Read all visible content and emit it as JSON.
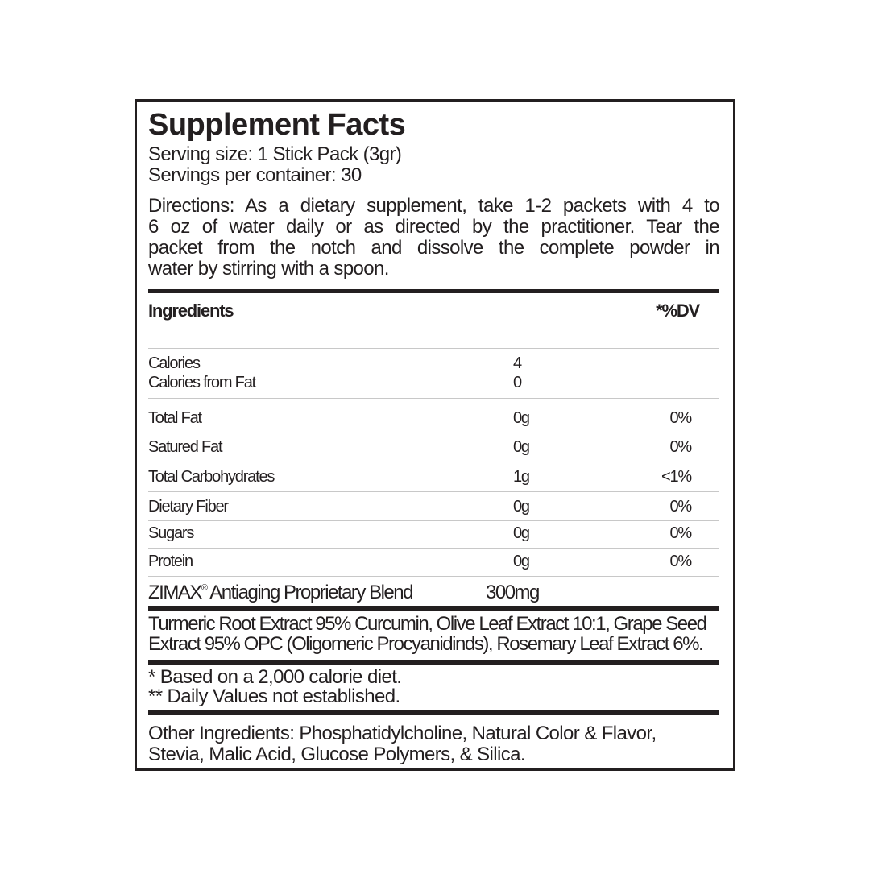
{
  "title": "Supplement Facts",
  "serving_size": "Serving size: 1 Stick Pack (3gr)",
  "servings_per_container": "Servings per container: 30",
  "directions": [
    "Directions: As a dietary supplement, take 1-2 packets with 4 to",
    "6 oz of water daily or as directed by the practitioner. Tear the",
    "packet from the notch and dissolve the complete powder in",
    "water by stirring with a spoon."
  ],
  "header": {
    "ingredients": "Ingredients",
    "dv": "*%DV"
  },
  "calories": {
    "label": "Calories",
    "value": "4"
  },
  "calories_from_fat": {
    "label": "Calories from Fat",
    "value": "0"
  },
  "rows": [
    {
      "label": "Total Fat",
      "amount": "0g",
      "dv": "0%"
    },
    {
      "label": "Satured Fat",
      "amount": "0g",
      "dv": "0%"
    },
    {
      "label": "Total Carbohydrates",
      "amount": "1g",
      "dv": "<1%"
    },
    {
      "label": "Dietary Fiber",
      "amount": "0g",
      "dv": "0%"
    },
    {
      "label": "Sugars",
      "amount": "0g",
      "dv": "0%"
    },
    {
      "label": "Protein",
      "amount": "0g",
      "dv": "0%"
    }
  ],
  "blend": {
    "brand": "ZIMAX",
    "reg": "®",
    "label": " Antiaging Proprietary Blend",
    "amount": "300mg"
  },
  "blend_ingredients": [
    "Turmeric Root Extract 95% Curcumin, Olive Leaf Extract 10:1, Grape Seed",
    "Extract 95% OPC (Oligomeric Procyanidinds), Rosemary Leaf Extract  6%."
  ],
  "footnotes": [
    "* Based on a 2,000 calorie diet.",
    "** Daily Values not established."
  ],
  "other_ingredients": [
    "Other Ingredients: Phosphatidylcholine, Natural Color & Flavor,",
    "Stevia, Malic Acid, Glucose Polymers, & Silica."
  ]
}
